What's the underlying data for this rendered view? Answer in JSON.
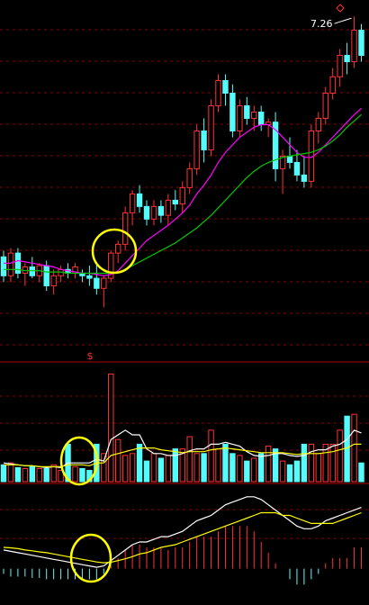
{
  "chart_data": [
    {
      "type": "candlestick",
      "ylim": [
        4.53,
        7.39
      ],
      "up_color": "#ff3232",
      "down_color": "#54fcfc",
      "high_label": "7.26",
      "marker": "$",
      "open": [
        5.35,
        5.2,
        5.38,
        5.22,
        5.27,
        5.2,
        5.28,
        5.12,
        5.2,
        5.25,
        5.22,
        5.22,
        5.2,
        5.18,
        5.1,
        5.18,
        5.38,
        5.45,
        5.7,
        5.85,
        5.75,
        5.65,
        5.75,
        5.68,
        5.8,
        5.77,
        5.9,
        6.05,
        6.35,
        6.2,
        6.55,
        6.75,
        6.65,
        6.35,
        6.55,
        6.45,
        6.5,
        6.4,
        6.42,
        6.05,
        6.15,
        6.1,
        6.0,
        5.95,
        6.35,
        6.45,
        6.65,
        6.78,
        6.95,
        6.9,
        7.15
      ],
      "high": [
        5.4,
        5.42,
        5.42,
        5.3,
        5.35,
        5.3,
        5.32,
        5.25,
        5.28,
        5.3,
        5.3,
        5.25,
        5.28,
        5.3,
        5.2,
        5.4,
        5.48,
        5.75,
        5.88,
        5.92,
        5.8,
        5.8,
        5.8,
        5.85,
        5.88,
        5.95,
        6.1,
        6.4,
        6.45,
        6.6,
        6.8,
        6.8,
        6.72,
        6.6,
        6.62,
        6.55,
        6.55,
        6.45,
        6.5,
        6.2,
        6.3,
        6.2,
        6.15,
        6.4,
        6.5,
        6.7,
        6.85,
        7.0,
        7.05,
        7.26,
        7.2
      ],
      "low": [
        5.15,
        5.15,
        5.18,
        5.12,
        5.18,
        5.15,
        5.08,
        5.05,
        5.15,
        5.18,
        5.18,
        5.15,
        5.12,
        5.05,
        4.95,
        5.15,
        5.3,
        5.4,
        5.6,
        5.7,
        5.6,
        5.6,
        5.62,
        5.6,
        5.72,
        5.7,
        5.85,
        6.0,
        6.1,
        6.15,
        6.5,
        6.55,
        6.3,
        6.3,
        6.4,
        6.35,
        6.35,
        6.3,
        5.95,
        5.85,
        6.05,
        5.95,
        5.9,
        5.9,
        6.25,
        6.4,
        6.6,
        6.7,
        6.8,
        6.85,
        6.9
      ],
      "close": [
        5.2,
        5.38,
        5.22,
        5.27,
        5.2,
        5.28,
        5.12,
        5.2,
        5.25,
        5.22,
        5.27,
        5.2,
        5.18,
        5.1,
        5.18,
        5.38,
        5.45,
        5.7,
        5.85,
        5.75,
        5.65,
        5.75,
        5.68,
        5.8,
        5.77,
        5.9,
        6.05,
        6.35,
        6.2,
        6.55,
        6.75,
        6.65,
        6.35,
        6.55,
        6.45,
        6.5,
        6.4,
        6.42,
        6.05,
        6.15,
        6.1,
        6.0,
        5.95,
        6.35,
        6.45,
        6.65,
        6.78,
        6.95,
        6.9,
        7.15,
        6.95
      ],
      "series": [
        {
          "color": "#ff00ff",
          "values": [
            5.3,
            5.3,
            5.32,
            5.31,
            5.3,
            5.29,
            5.28,
            5.27,
            5.25,
            5.24,
            5.23,
            5.22,
            5.22,
            5.21,
            5.2,
            5.21,
            5.24,
            5.3,
            5.36,
            5.42,
            5.48,
            5.52,
            5.56,
            5.6,
            5.65,
            5.7,
            5.76,
            5.85,
            5.92,
            6.0,
            6.1,
            6.18,
            6.24,
            6.3,
            6.34,
            6.38,
            6.4,
            6.4,
            6.36,
            6.3,
            6.24,
            6.18,
            6.14,
            6.14,
            6.18,
            6.24,
            6.3,
            6.36,
            6.42,
            6.48,
            6.53
          ]
        },
        {
          "color": "#00c800",
          "values": [
            5.25,
            5.25,
            5.25,
            5.24,
            5.24,
            5.24,
            5.23,
            5.23,
            5.23,
            5.22,
            5.22,
            5.22,
            5.22,
            5.22,
            5.22,
            5.22,
            5.23,
            5.25,
            5.28,
            5.31,
            5.34,
            5.37,
            5.4,
            5.43,
            5.46,
            5.5,
            5.54,
            5.58,
            5.63,
            5.68,
            5.74,
            5.8,
            5.86,
            5.92,
            5.98,
            6.03,
            6.07,
            6.1,
            6.12,
            6.14,
            6.15,
            6.16,
            6.17,
            6.18,
            6.2,
            6.23,
            6.27,
            6.32,
            6.38,
            6.43,
            6.48
          ]
        }
      ]
    },
    {
      "type": "volume",
      "ylim": [
        0,
        125
      ],
      "values": [
        18,
        20,
        15,
        14,
        16,
        14,
        14,
        18,
        12,
        40,
        16,
        14,
        12,
        40,
        30,
        115,
        45,
        28,
        30,
        40,
        22,
        30,
        25,
        28,
        35,
        35,
        48,
        30,
        30,
        55,
        35,
        40,
        30,
        28,
        22,
        25,
        30,
        38,
        35,
        22,
        18,
        22,
        40,
        40,
        30,
        40,
        40,
        55,
        70,
        72,
        20
      ],
      "series": [
        {
          "color": "#ffffff",
          "values": [
            20,
            19,
            18,
            17,
            17,
            16,
            15,
            16,
            15,
            20,
            20,
            20,
            20,
            24,
            22,
            45,
            50,
            55,
            50,
            50,
            35,
            30,
            30,
            28,
            28,
            30,
            33,
            35,
            35,
            40,
            40,
            42,
            40,
            38,
            32,
            28,
            27,
            28,
            30,
            30,
            28,
            27,
            28,
            32,
            34,
            34,
            38,
            40,
            45,
            55,
            52
          ]
        },
        {
          "color": "#ffff00",
          "values": [
            18,
            18,
            18,
            17,
            17,
            16,
            16,
            16,
            16,
            18,
            18,
            18,
            17,
            20,
            20,
            28,
            30,
            32,
            34,
            36,
            36,
            36,
            34,
            33,
            32,
            31,
            32,
            32,
            32,
            34,
            35,
            36,
            35,
            34,
            33,
            32,
            31,
            31,
            31,
            31,
            30,
            29,
            30,
            30,
            30,
            31,
            32,
            34,
            36,
            40,
            40
          ]
        }
      ]
    },
    {
      "type": "macd",
      "ylim": [
        -0.13,
        0.31
      ],
      "values": [
        -0.02,
        -0.03,
        -0.03,
        -0.03,
        -0.035,
        -0.035,
        -0.04,
        -0.04,
        -0.04,
        -0.04,
        -0.04,
        -0.04,
        -0.04,
        -0.04,
        -0.02,
        0.01,
        0.04,
        0.07,
        0.09,
        0.09,
        0.08,
        0.08,
        0.08,
        0.07,
        0.08,
        0.08,
        0.1,
        0.12,
        0.12,
        0.12,
        0.14,
        0.16,
        0.16,
        0.16,
        0.16,
        0.14,
        0.1,
        0.06,
        0.02,
        0,
        -0.04,
        -0.06,
        -0.06,
        -0.04,
        -0.02,
        0.02,
        0.04,
        0.04,
        0.04,
        0.08,
        0.08
      ],
      "series": [
        {
          "color": "#ffffff",
          "values": [
            0.07,
            0.065,
            0.06,
            0.055,
            0.05,
            0.045,
            0.04,
            0.035,
            0.03,
            0.025,
            0.02,
            0.015,
            0.01,
            0.005,
            0.01,
            0.03,
            0.05,
            0.07,
            0.09,
            0.1,
            0.1,
            0.11,
            0.12,
            0.12,
            0.13,
            0.14,
            0.16,
            0.18,
            0.19,
            0.2,
            0.22,
            0.24,
            0.25,
            0.26,
            0.27,
            0.27,
            0.26,
            0.24,
            0.22,
            0.2,
            0.18,
            0.16,
            0.15,
            0.15,
            0.16,
            0.18,
            0.19,
            0.2,
            0.21,
            0.22,
            0.23
          ]
        },
        {
          "color": "#ffff00",
          "values": [
            0.08,
            0.078,
            0.075,
            0.07,
            0.067,
            0.063,
            0.06,
            0.055,
            0.05,
            0.045,
            0.04,
            0.035,
            0.03,
            0.025,
            0.022,
            0.024,
            0.03,
            0.037,
            0.045,
            0.055,
            0.06,
            0.07,
            0.08,
            0.085,
            0.09,
            0.1,
            0.11,
            0.12,
            0.13,
            0.14,
            0.15,
            0.16,
            0.17,
            0.18,
            0.19,
            0.2,
            0.21,
            0.21,
            0.21,
            0.2,
            0.2,
            0.19,
            0.18,
            0.17,
            0.17,
            0.17,
            0.17,
            0.18,
            0.19,
            0.2,
            0.21
          ]
        }
      ]
    }
  ]
}
